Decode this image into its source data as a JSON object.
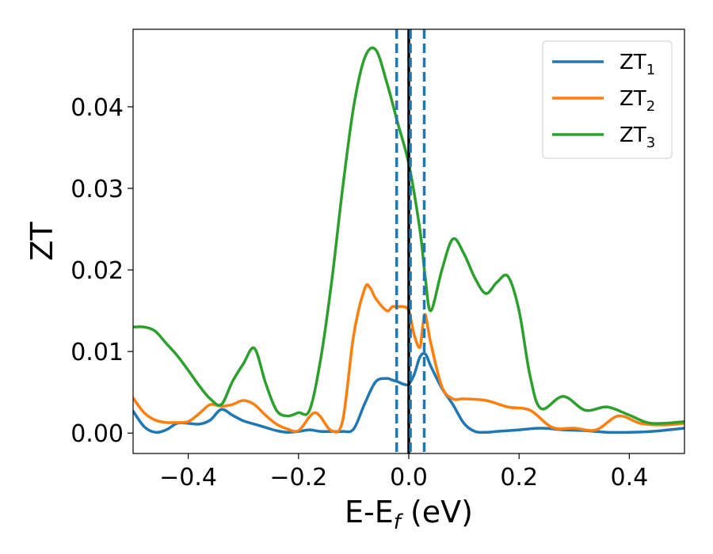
{
  "chart_data": {
    "type": "line",
    "xlabel": "E-E",
    "xlabel_sub": "f",
    "xlabel_unit": " (eV)",
    "ylabel": "ZT",
    "xlim": [
      -0.5,
      0.5
    ],
    "ylim": [
      -0.0025,
      0.0495
    ],
    "xticks": [
      -0.4,
      -0.2,
      0.0,
      0.2,
      0.4
    ],
    "xtick_labels": [
      "−0.4",
      "−0.2",
      "0.0",
      "0.2",
      "0.4"
    ],
    "yticks": [
      0.0,
      0.01,
      0.02,
      0.03,
      0.04
    ],
    "ytick_labels": [
      "0.00",
      "0.01",
      "0.02",
      "0.03",
      "0.04"
    ],
    "grid": false,
    "legend_position": "top-right",
    "vlines": [
      {
        "x": 0.0,
        "color": "#000000",
        "style": "solid"
      },
      {
        "x": -0.022,
        "color": "#1f77b4",
        "style": "dashed"
      },
      {
        "x": 0.003,
        "color": "#1f77b4",
        "style": "dashed"
      },
      {
        "x": 0.028,
        "color": "#1f77b4",
        "style": "dashed"
      }
    ],
    "series": [
      {
        "name": "ZT",
        "name_sub": "1",
        "color": "#1f77b4",
        "x": [
          -0.5,
          -0.48,
          -0.46,
          -0.44,
          -0.42,
          -0.4,
          -0.38,
          -0.36,
          -0.34,
          -0.32,
          -0.3,
          -0.28,
          -0.26,
          -0.24,
          -0.22,
          -0.2,
          -0.18,
          -0.16,
          -0.14,
          -0.12,
          -0.1,
          -0.08,
          -0.06,
          -0.04,
          -0.03,
          -0.02,
          -0.01,
          0.0,
          0.01,
          0.02,
          0.03,
          0.04,
          0.06,
          0.08,
          0.1,
          0.12,
          0.14,
          0.16,
          0.2,
          0.24,
          0.28,
          0.32,
          0.36,
          0.4,
          0.44,
          0.5
        ],
        "y": [
          0.0027,
          0.0008,
          0.0001,
          0.0004,
          0.0012,
          0.0012,
          0.0011,
          0.0016,
          0.0029,
          0.0022,
          0.0015,
          0.0011,
          0.0007,
          0.0003,
          0.0001,
          0.0002,
          0.0004,
          0.0002,
          0.0002,
          0.0002,
          0.0005,
          0.0036,
          0.0063,
          0.0067,
          0.0065,
          0.0063,
          0.006,
          0.006,
          0.0072,
          0.0093,
          0.0097,
          0.0082,
          0.0055,
          0.0035,
          0.0012,
          0.0002,
          0.0001,
          0.0002,
          0.0004,
          0.0006,
          0.0004,
          0.0003,
          0.0001,
          0.0001,
          0.0002,
          0.0006
        ]
      },
      {
        "name": "ZT",
        "name_sub": "2",
        "color": "#ff7f0e",
        "x": [
          -0.5,
          -0.48,
          -0.46,
          -0.44,
          -0.42,
          -0.4,
          -0.38,
          -0.36,
          -0.34,
          -0.32,
          -0.3,
          -0.28,
          -0.26,
          -0.24,
          -0.22,
          -0.2,
          -0.18,
          -0.17,
          -0.16,
          -0.14,
          -0.12,
          -0.1,
          -0.08,
          -0.07,
          -0.06,
          -0.04,
          -0.03,
          -0.02,
          -0.01,
          0.0,
          0.01,
          0.02,
          0.025,
          0.03,
          0.04,
          0.06,
          0.08,
          0.1,
          0.14,
          0.18,
          0.22,
          0.26,
          0.3,
          0.34,
          0.38,
          0.42,
          0.46,
          0.5
        ],
        "y": [
          0.0043,
          0.0025,
          0.0016,
          0.0013,
          0.0013,
          0.0014,
          0.0024,
          0.0035,
          0.0033,
          0.0035,
          0.004,
          0.0035,
          0.0022,
          0.0011,
          0.0005,
          0.0003,
          0.002,
          0.0025,
          0.002,
          0.0003,
          0.0015,
          0.012,
          0.0177,
          0.0178,
          0.0165,
          0.015,
          0.0155,
          0.0155,
          0.0155,
          0.015,
          0.012,
          0.0105,
          0.013,
          0.0145,
          0.011,
          0.0057,
          0.0042,
          0.0042,
          0.004,
          0.0032,
          0.0028,
          0.0007,
          0.0006,
          0.0004,
          0.0021,
          0.0012,
          0.001,
          0.0012
        ]
      },
      {
        "name": "ZT",
        "name_sub": "3",
        "color": "#2ca02c",
        "x": [
          -0.5,
          -0.48,
          -0.46,
          -0.44,
          -0.42,
          -0.4,
          -0.38,
          -0.36,
          -0.34,
          -0.32,
          -0.3,
          -0.28,
          -0.26,
          -0.24,
          -0.22,
          -0.2,
          -0.18,
          -0.16,
          -0.14,
          -0.12,
          -0.1,
          -0.08,
          -0.06,
          -0.04,
          -0.02,
          0.0,
          0.02,
          0.03,
          0.04,
          0.06,
          0.08,
          0.1,
          0.12,
          0.14,
          0.16,
          0.18,
          0.2,
          0.22,
          0.24,
          0.28,
          0.32,
          0.36,
          0.4,
          0.44,
          0.5
        ],
        "y": [
          0.013,
          0.013,
          0.0125,
          0.011,
          0.0095,
          0.0077,
          0.0058,
          0.0042,
          0.0035,
          0.0063,
          0.0085,
          0.0104,
          0.0062,
          0.0028,
          0.0021,
          0.0025,
          0.0028,
          0.009,
          0.0185,
          0.03,
          0.04,
          0.046,
          0.047,
          0.043,
          0.038,
          0.033,
          0.025,
          0.019,
          0.015,
          0.02,
          0.0238,
          0.022,
          0.019,
          0.0171,
          0.0185,
          0.0192,
          0.015,
          0.007,
          0.003,
          0.0045,
          0.0028,
          0.0032,
          0.0022,
          0.0012,
          0.0014
        ]
      }
    ]
  }
}
